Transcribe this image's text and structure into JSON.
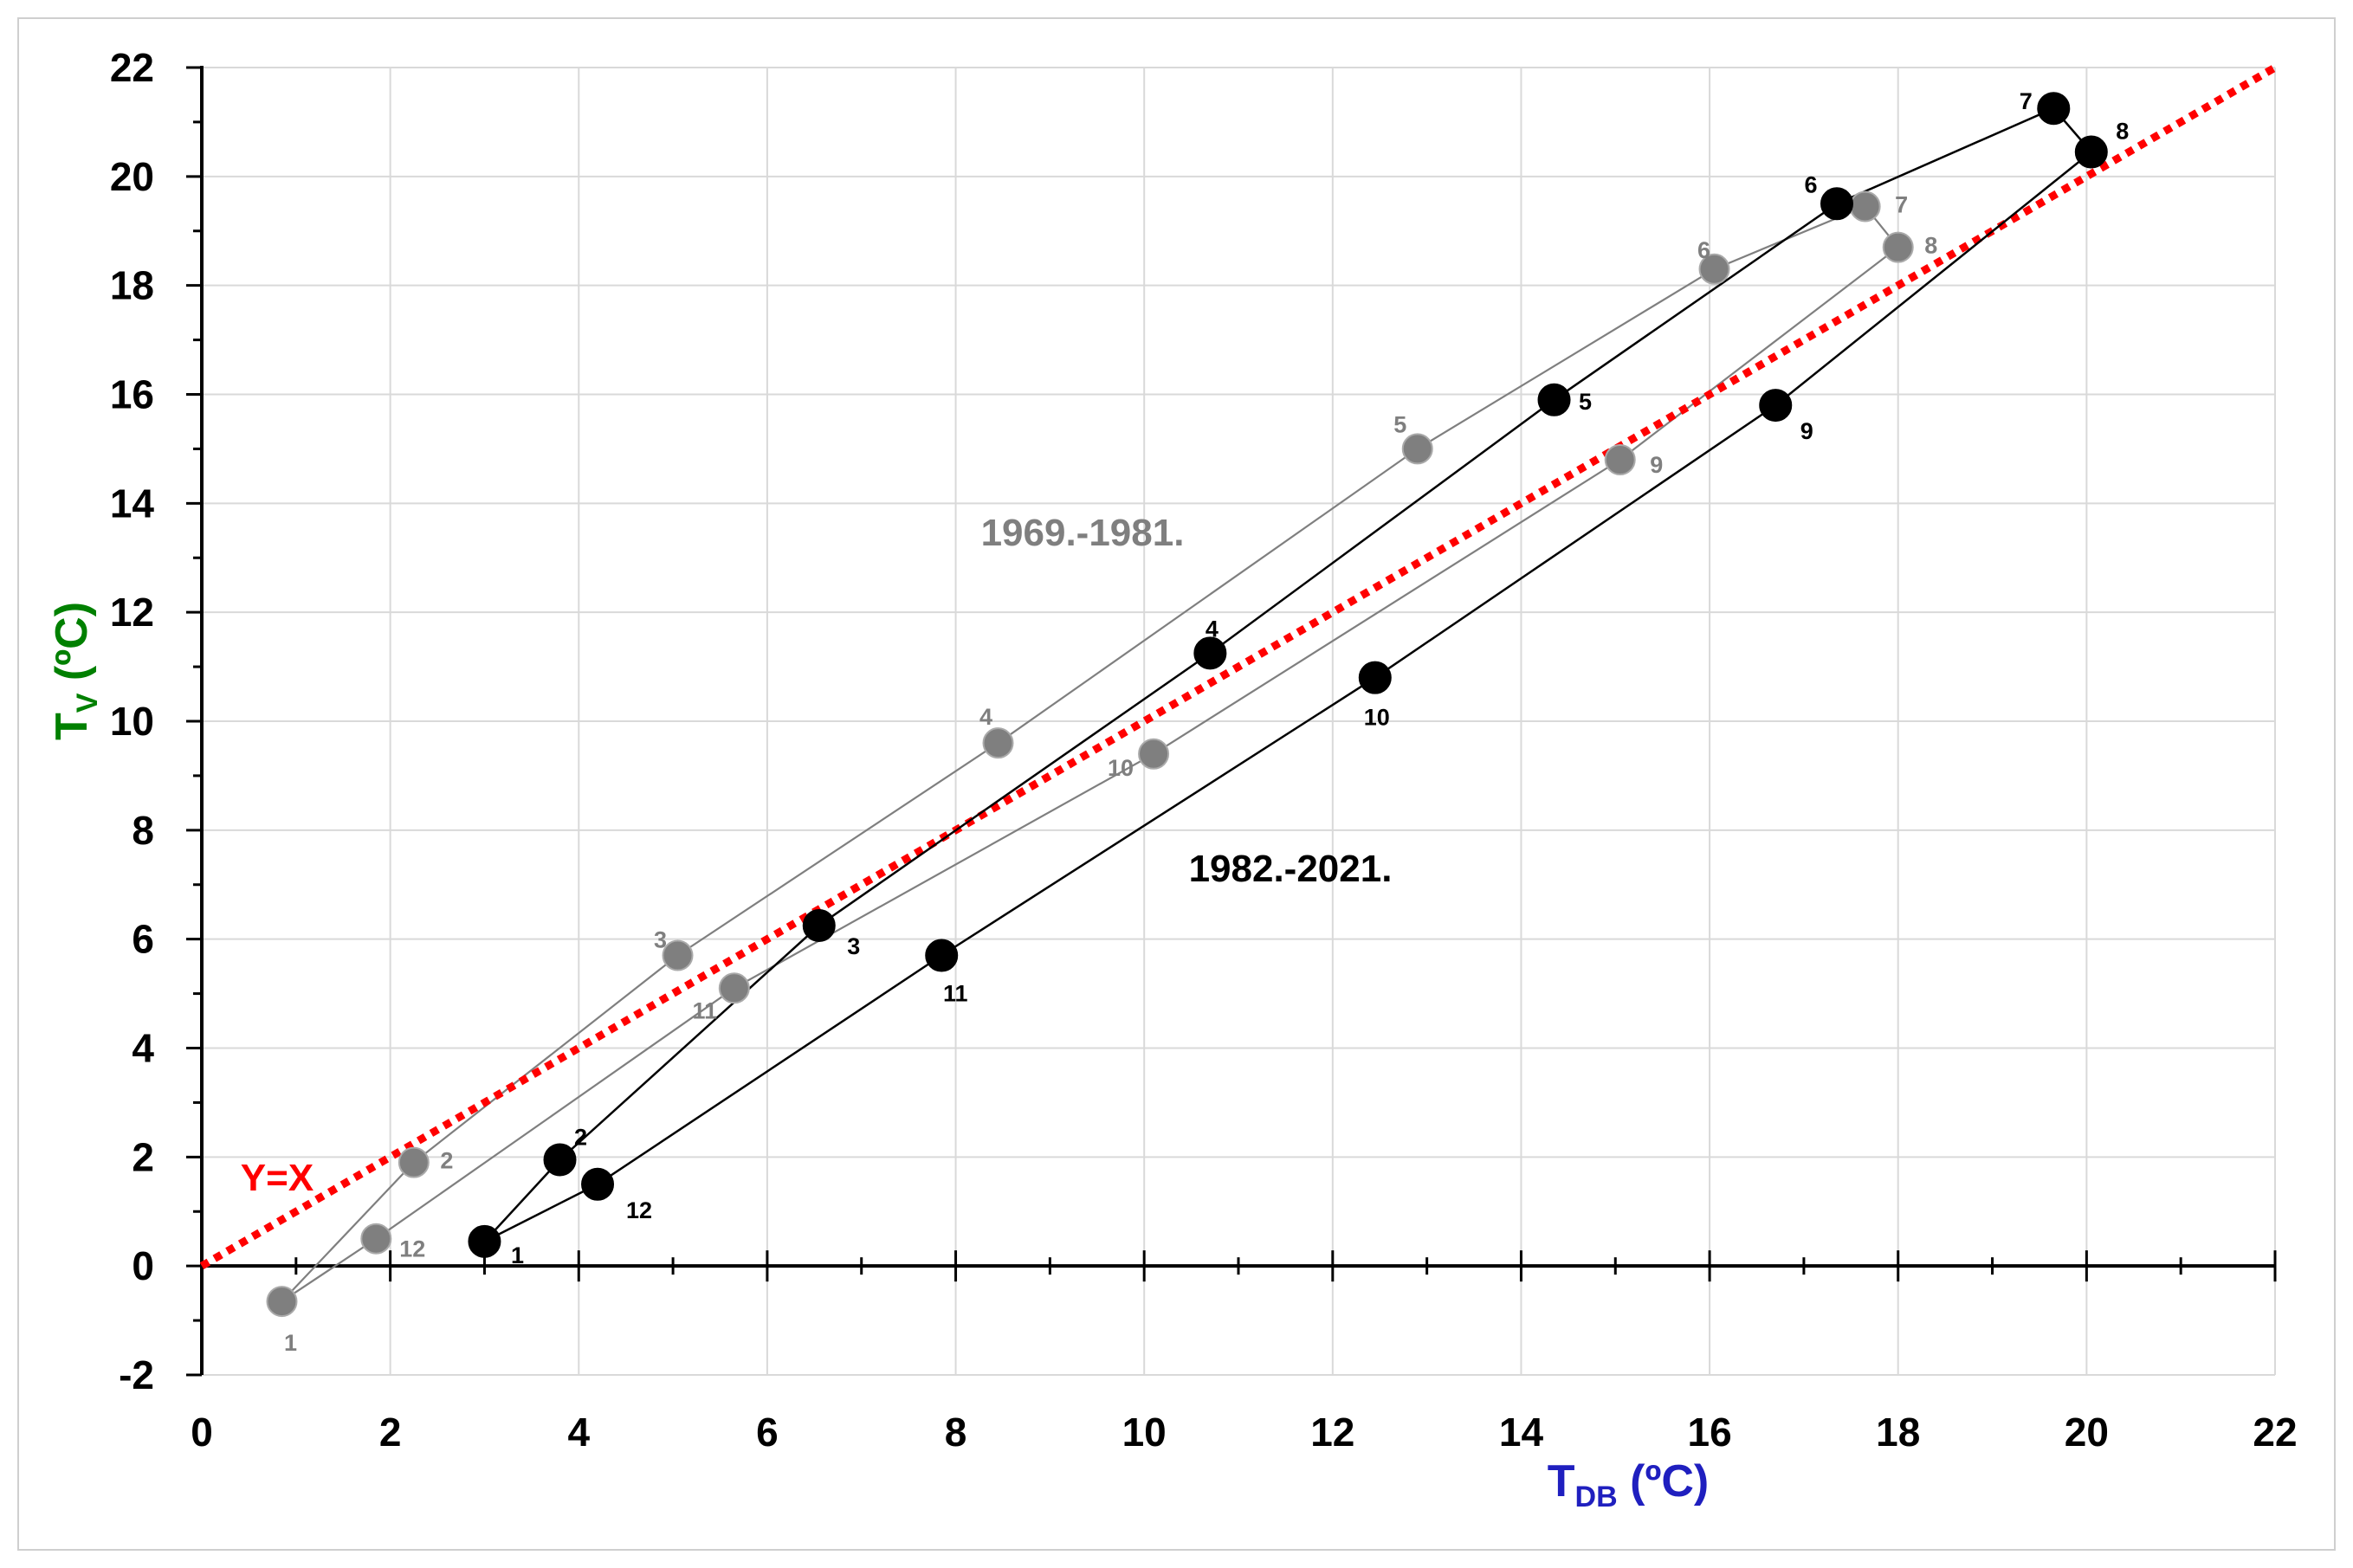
{
  "chart_data": {
    "type": "scatter",
    "title": "",
    "xlabel": {
      "main": "T",
      "sub": "DB",
      "unit": " (ºC)"
    },
    "ylabel": {
      "main": "T",
      "sub": "V",
      "unit": " (ºC)"
    },
    "xlim": [
      0,
      22
    ],
    "ylim": [
      -2,
      22
    ],
    "x_ticks": [
      0,
      2,
      4,
      6,
      8,
      10,
      12,
      14,
      16,
      18,
      20,
      22
    ],
    "y_ticks": [
      -2,
      0,
      2,
      4,
      6,
      8,
      10,
      12,
      14,
      16,
      18,
      20,
      22
    ],
    "grid": true,
    "reference_line": {
      "label": "Y=X",
      "x": [
        0,
        22
      ],
      "y": [
        0,
        22
      ],
      "color": "#ff0000"
    },
    "series": [
      {
        "name": "1969.-1981.",
        "color": "#7f7f7f",
        "points": [
          {
            "label": "1",
            "x": 0.85,
            "y": -0.65
          },
          {
            "label": "2",
            "x": 2.25,
            "y": 1.9
          },
          {
            "label": "3",
            "x": 5.05,
            "y": 5.7
          },
          {
            "label": "4",
            "x": 8.45,
            "y": 9.6
          },
          {
            "label": "5",
            "x": 12.9,
            "y": 15.0
          },
          {
            "label": "6",
            "x": 16.05,
            "y": 18.3
          },
          {
            "label": "7",
            "x": 17.65,
            "y": 19.45
          },
          {
            "label": "8",
            "x": 18.0,
            "y": 18.7
          },
          {
            "label": "9",
            "x": 15.05,
            "y": 14.8
          },
          {
            "label": "10",
            "x": 10.1,
            "y": 9.4
          },
          {
            "label": "11",
            "x": 5.65,
            "y": 5.1
          },
          {
            "label": "12",
            "x": 1.85,
            "y": 0.5
          }
        ]
      },
      {
        "name": "1982.-2021.",
        "color": "#000000",
        "points": [
          {
            "label": "1",
            "x": 3.0,
            "y": 0.45
          },
          {
            "label": "2",
            "x": 3.8,
            "y": 1.95
          },
          {
            "label": "3",
            "x": 6.55,
            "y": 6.25
          },
          {
            "label": "4",
            "x": 10.7,
            "y": 11.25
          },
          {
            "label": "5",
            "x": 14.35,
            "y": 15.9
          },
          {
            "label": "6",
            "x": 17.35,
            "y": 19.5
          },
          {
            "label": "7",
            "x": 19.65,
            "y": 21.25
          },
          {
            "label": "8",
            "x": 20.05,
            "y": 20.45
          },
          {
            "label": "9",
            "x": 16.7,
            "y": 15.8
          },
          {
            "label": "10",
            "x": 12.45,
            "y": 10.8
          },
          {
            "label": "11",
            "x": 7.85,
            "y": 5.7
          },
          {
            "label": "12",
            "x": 4.2,
            "y": 1.5
          }
        ]
      }
    ]
  }
}
